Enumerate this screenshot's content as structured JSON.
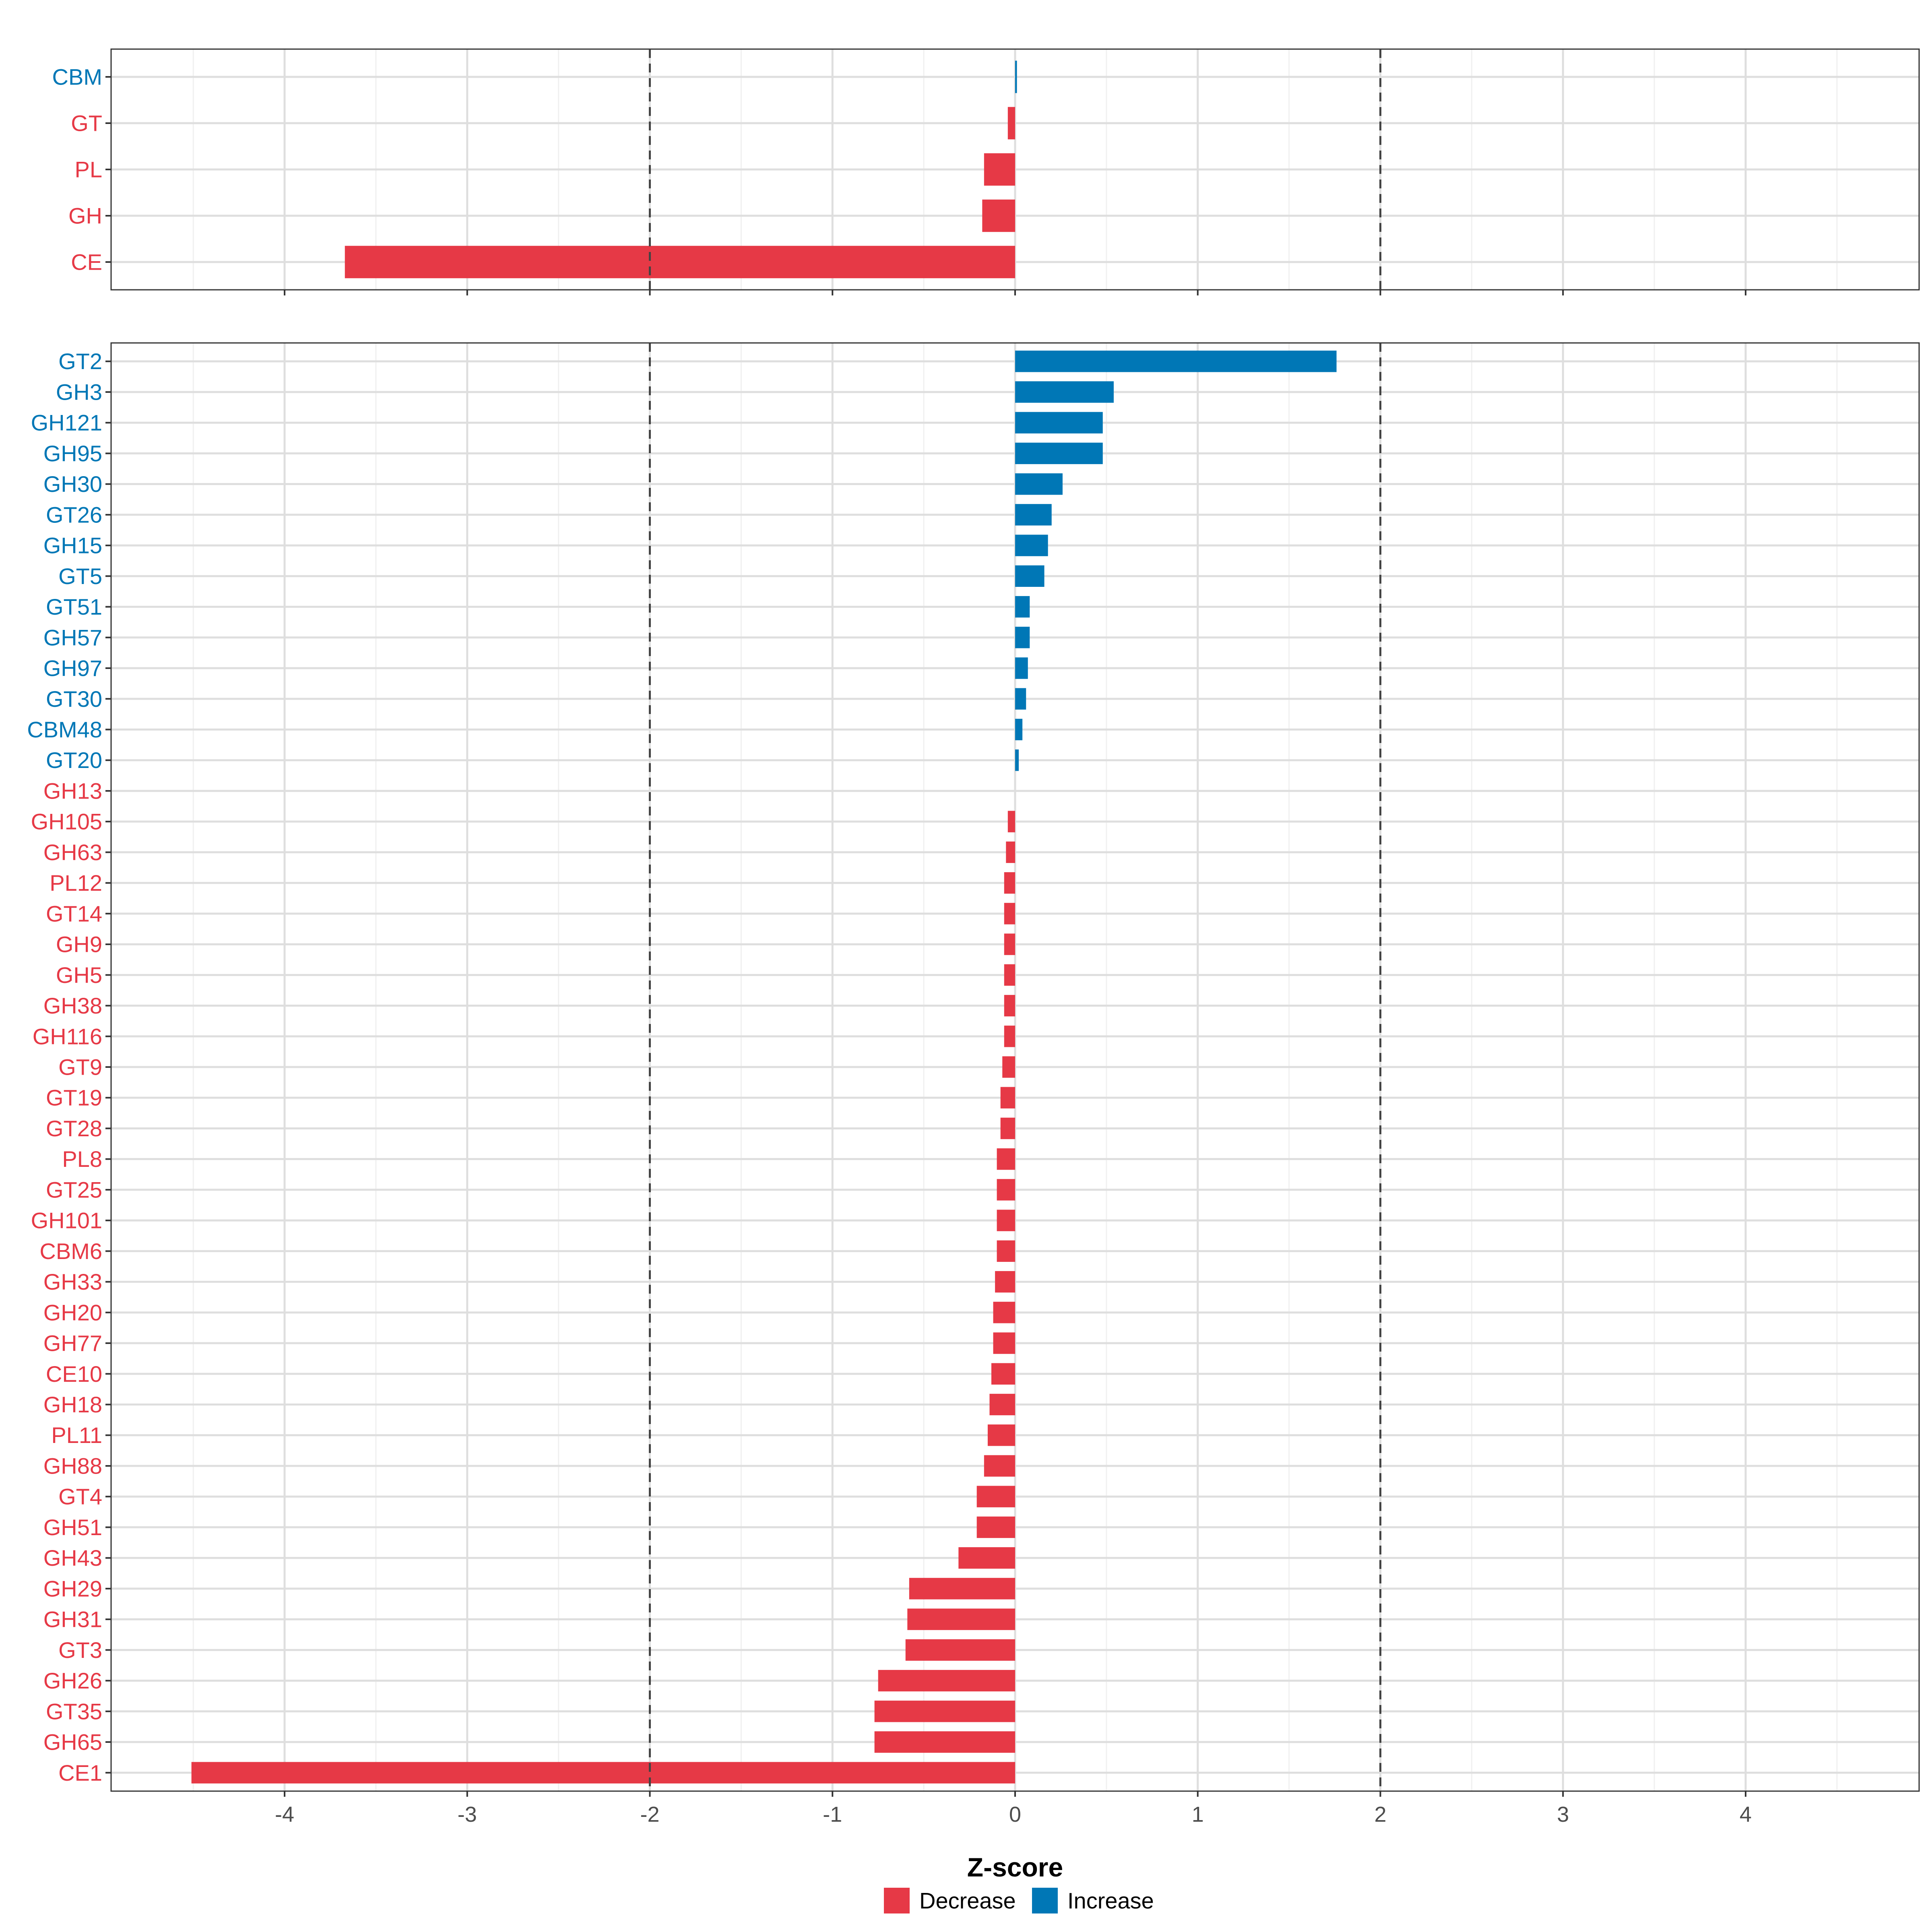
{
  "chart_data": {
    "type": "bar",
    "orientation": "horizontal",
    "xlabel": "Z-score",
    "xlim": [
      -4.95,
      4.95
    ],
    "x_ticks": [
      -4,
      -3,
      -2,
      -1,
      0,
      1,
      2,
      3,
      4
    ],
    "reference_lines": [
      -2,
      2
    ],
    "grid": true,
    "legend_position": "bottom",
    "colors": {
      "Decrease": "#e63946",
      "Increase": "#0077b6"
    },
    "legend": [
      {
        "label": "Decrease",
        "color": "#e63946"
      },
      {
        "label": "Increase",
        "color": "#0077b6"
      }
    ],
    "panels": [
      {
        "name": "top",
        "categories": [
          "CBM",
          "GT",
          "PL",
          "GH",
          "CE"
        ],
        "values": [
          0.01,
          -0.04,
          -0.17,
          -0.18,
          -3.67
        ]
      },
      {
        "name": "bottom",
        "categories": [
          "GT2",
          "GH3",
          "GH121",
          "GH95",
          "GH30",
          "GT26",
          "GH15",
          "GT5",
          "GT51",
          "GH57",
          "GH97",
          "GT30",
          "CBM48",
          "GT20",
          "GH13",
          "GH105",
          "GH63",
          "PL12",
          "GT14",
          "GH9",
          "GH5",
          "GH38",
          "GH116",
          "GT9",
          "GT19",
          "GT28",
          "PL8",
          "GT25",
          "GH101",
          "CBM6",
          "GH33",
          "GH20",
          "GH77",
          "CE10",
          "GH18",
          "PL11",
          "GH88",
          "GT4",
          "GH51",
          "GH43",
          "GH29",
          "GH31",
          "GT3",
          "GH26",
          "GT35",
          "GH65",
          "CE1"
        ],
        "values": [
          1.76,
          0.54,
          0.48,
          0.48,
          0.26,
          0.2,
          0.18,
          0.16,
          0.08,
          0.08,
          0.07,
          0.06,
          0.04,
          0.02,
          0.0,
          -0.04,
          -0.05,
          -0.06,
          -0.06,
          -0.06,
          -0.06,
          -0.06,
          -0.06,
          -0.07,
          -0.08,
          -0.08,
          -0.1,
          -0.1,
          -0.1,
          -0.1,
          -0.11,
          -0.12,
          -0.12,
          -0.13,
          -0.14,
          -0.15,
          -0.17,
          -0.21,
          -0.21,
          -0.31,
          -0.58,
          -0.59,
          -0.6,
          -0.75,
          -0.77,
          -0.77,
          -4.51
        ]
      }
    ]
  }
}
